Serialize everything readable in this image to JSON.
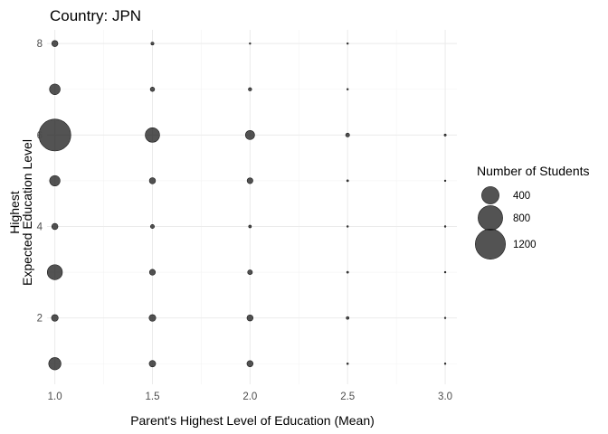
{
  "chart_data": {
    "type": "scatter",
    "title": "Country: JPN",
    "xlabel": "Parent's Highest Level of Education (Mean)",
    "ylabel": [
      "Highest",
      "Expected Education Level"
    ],
    "xlim": [
      0.96,
      3.06
    ],
    "ylim": [
      0.55,
      8.3
    ],
    "x_ticks": [
      1.0,
      1.5,
      2.0,
      2.5,
      3.0
    ],
    "x_tick_labels": [
      "1.0",
      "1.5",
      "2.0",
      "2.5",
      "3.0"
    ],
    "y_ticks": [
      2,
      4,
      6,
      8
    ],
    "y_tick_labels": [
      "2",
      "4",
      "6",
      "8"
    ],
    "grid": true,
    "legend": {
      "title": "Number of Students",
      "position": "right",
      "entries": [
        {
          "label": "400",
          "value": 400
        },
        {
          "label": "800",
          "value": 800
        },
        {
          "label": "1200",
          "value": 1200
        }
      ]
    },
    "size_max_value": 1400,
    "points": [
      {
        "x": 1.0,
        "y": 8,
        "n": 50
      },
      {
        "x": 1.5,
        "y": 8,
        "n": 12
      },
      {
        "x": 2.0,
        "y": 8,
        "n": 3
      },
      {
        "x": 2.5,
        "y": 8,
        "n": 2
      },
      {
        "x": 1.0,
        "y": 7,
        "n": 150
      },
      {
        "x": 1.5,
        "y": 7,
        "n": 25
      },
      {
        "x": 2.0,
        "y": 7,
        "n": 15
      },
      {
        "x": 2.5,
        "y": 7,
        "n": 3
      },
      {
        "x": 1.0,
        "y": 6,
        "n": 1350
      },
      {
        "x": 1.5,
        "y": 6,
        "n": 275
      },
      {
        "x": 2.0,
        "y": 6,
        "n": 110
      },
      {
        "x": 2.5,
        "y": 6,
        "n": 20
      },
      {
        "x": 3.0,
        "y": 6,
        "n": 6
      },
      {
        "x": 1.0,
        "y": 5,
        "n": 145
      },
      {
        "x": 1.5,
        "y": 5,
        "n": 50
      },
      {
        "x": 2.0,
        "y": 5,
        "n": 45
      },
      {
        "x": 2.5,
        "y": 5,
        "n": 5
      },
      {
        "x": 3.0,
        "y": 5,
        "n": 3
      },
      {
        "x": 1.0,
        "y": 4,
        "n": 50
      },
      {
        "x": 1.5,
        "y": 4,
        "n": 20
      },
      {
        "x": 2.0,
        "y": 4,
        "n": 10
      },
      {
        "x": 2.5,
        "y": 4,
        "n": 3
      },
      {
        "x": 3.0,
        "y": 4,
        "n": 2
      },
      {
        "x": 1.0,
        "y": 3,
        "n": 300
      },
      {
        "x": 1.5,
        "y": 3,
        "n": 45
      },
      {
        "x": 2.0,
        "y": 3,
        "n": 30
      },
      {
        "x": 2.5,
        "y": 3,
        "n": 5
      },
      {
        "x": 3.0,
        "y": 3,
        "n": 3
      },
      {
        "x": 1.0,
        "y": 2,
        "n": 60
      },
      {
        "x": 1.5,
        "y": 2,
        "n": 60
      },
      {
        "x": 2.0,
        "y": 2,
        "n": 50
      },
      {
        "x": 2.5,
        "y": 2,
        "n": 10
      },
      {
        "x": 3.0,
        "y": 2,
        "n": 3
      },
      {
        "x": 1.0,
        "y": 1,
        "n": 200
      },
      {
        "x": 1.5,
        "y": 1,
        "n": 55
      },
      {
        "x": 2.0,
        "y": 1,
        "n": 50
      },
      {
        "x": 2.5,
        "y": 1,
        "n": 4
      },
      {
        "x": 3.0,
        "y": 1,
        "n": 3
      }
    ]
  }
}
